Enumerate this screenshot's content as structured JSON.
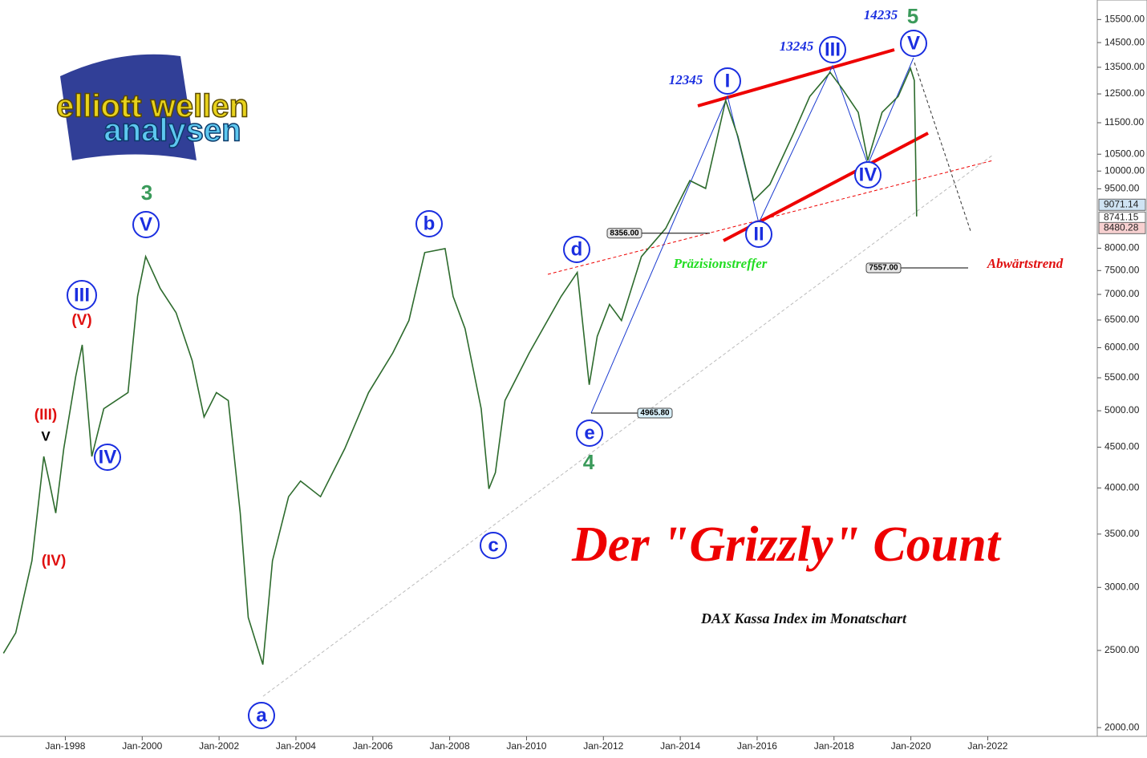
{
  "chart_data": {
    "type": "line",
    "title": "Der \"Grizzly\" Count",
    "subtitle": "DAX Kassa Index im Monatschart",
    "logo": [
      "elliott wellen",
      "analysen"
    ],
    "yscale": "log",
    "x": [
      1996.39,
      1996.71,
      1997.13,
      1997.44,
      1997.58,
      1997.75,
      1997.96,
      1998.27,
      1998.44,
      1998.69,
      1999.0,
      1999.63,
      1999.88,
      2000.09,
      2000.47,
      2000.88,
      2001.3,
      2001.61,
      2001.93,
      2002.24,
      2002.55,
      2002.76,
      2003.14,
      2003.39,
      2003.81,
      2004.12,
      2004.64,
      2005.27,
      2005.89,
      2006.52,
      2006.94,
      2007.35,
      2007.88,
      2008.09,
      2008.4,
      2008.82,
      2009.02,
      2009.19,
      2009.44,
      2010.07,
      2010.9,
      2011.32,
      2011.63,
      2011.84,
      2012.16,
      2012.47,
      2012.99,
      2013.62,
      2014.25,
      2014.66,
      2015.18,
      2015.5,
      2015.91,
      2016.33,
      2016.96,
      2017.37,
      2017.9,
      2018.21,
      2018.63,
      2018.88,
      2019.25,
      2019.67,
      2019.99,
      2020.09,
      2020.15
    ],
    "series": [
      {
        "name": "DAX",
        "color": "#2d6b2d",
        "values": [
          2480,
          2630,
          3240,
          4380,
          4080,
          3720,
          4480,
          5520,
          6050,
          4380,
          5030,
          5270,
          6960,
          7810,
          7120,
          6640,
          5780,
          4910,
          5270,
          5150,
          3720,
          2750,
          2400,
          3240,
          3900,
          4080,
          3900,
          4480,
          5270,
          5910,
          6490,
          7900,
          7990,
          6960,
          6340,
          5030,
          3990,
          4180,
          5150,
          5910,
          6960,
          7460,
          5390,
          6200,
          6800,
          6490,
          7810,
          8470,
          9730,
          9510,
          12270,
          11050,
          9180,
          9620,
          11180,
          12410,
          13300,
          12700,
          11850,
          10310,
          11850,
          12410,
          13460,
          13000,
          8770
        ]
      }
    ],
    "xlim": [
      1996.3,
      2024.85
    ],
    "ylim": [
      1950,
      16400
    ],
    "xticks": [
      {
        "value": 1998,
        "label": "Jan-1998"
      },
      {
        "value": 2000,
        "label": "Jan-2000"
      },
      {
        "value": 2002,
        "label": "Jan-2002"
      },
      {
        "value": 2004,
        "label": "Jan-2004"
      },
      {
        "value": 2006,
        "label": "Jan-2006"
      },
      {
        "value": 2008,
        "label": "Jan-2008"
      },
      {
        "value": 2010,
        "label": "Jan-2010"
      },
      {
        "value": 2012,
        "label": "Jan-2012"
      },
      {
        "value": 2014,
        "label": "Jan-2014"
      },
      {
        "value": 2016,
        "label": "Jan-2016"
      },
      {
        "value": 2018,
        "label": "Jan-2018"
      },
      {
        "value": 2020,
        "label": "Jan-2020"
      },
      {
        "value": 2022,
        "label": "Jan-2022"
      }
    ],
    "yticks": [
      {
        "value": 2000,
        "label": "2000.00"
      },
      {
        "value": 2500,
        "label": "2500.00"
      },
      {
        "value": 3000,
        "label": "3000.00"
      },
      {
        "value": 3500,
        "label": "3500.00"
      },
      {
        "value": 4000,
        "label": "4000.00"
      },
      {
        "value": 4500,
        "label": "4500.00"
      },
      {
        "value": 5000,
        "label": "5000.00"
      },
      {
        "value": 5500,
        "label": "5500.00"
      },
      {
        "value": 6000,
        "label": "6000.00"
      },
      {
        "value": 6500,
        "label": "6500.00"
      },
      {
        "value": 7000,
        "label": "7000.00"
      },
      {
        "value": 7500,
        "label": "7500.00"
      },
      {
        "value": 8000,
        "label": "8000.00"
      },
      {
        "value": 9500,
        "label": "9500.00"
      },
      {
        "value": 10000,
        "label": "10000.00"
      },
      {
        "value": 10500,
        "label": "10500.00"
      },
      {
        "value": 11500,
        "label": "11500.00"
      },
      {
        "value": 12500,
        "label": "12500.00"
      },
      {
        "value": 13500,
        "label": "13500.00"
      },
      {
        "value": 14500,
        "label": "14500.00"
      },
      {
        "value": 15500,
        "label": "15500.00"
      }
    ],
    "axis_price_labels": [
      {
        "value": 9071.14,
        "label": "9071.14"
      },
      {
        "value": 8741.15,
        "label": "8741.15"
      },
      {
        "value": 8480.28,
        "label": "8480.28"
      }
    ],
    "price_marks": [
      {
        "value": 8356,
        "label": "8356.00"
      },
      {
        "value": 7557,
        "label": "7557.00"
      },
      {
        "value": 4965.8,
        "label": "4965.80"
      }
    ],
    "annotations": [
      "3",
      "V",
      "III",
      "(V)",
      "(III)",
      "V",
      "IV",
      "(IV)",
      "a",
      "b",
      "c",
      "d",
      "e",
      "4",
      "I",
      "II",
      "III",
      "IV",
      "V",
      "12345",
      "13245",
      "14235",
      "5",
      "Präzisionstreffer",
      "Abwärtstrend"
    ]
  }
}
